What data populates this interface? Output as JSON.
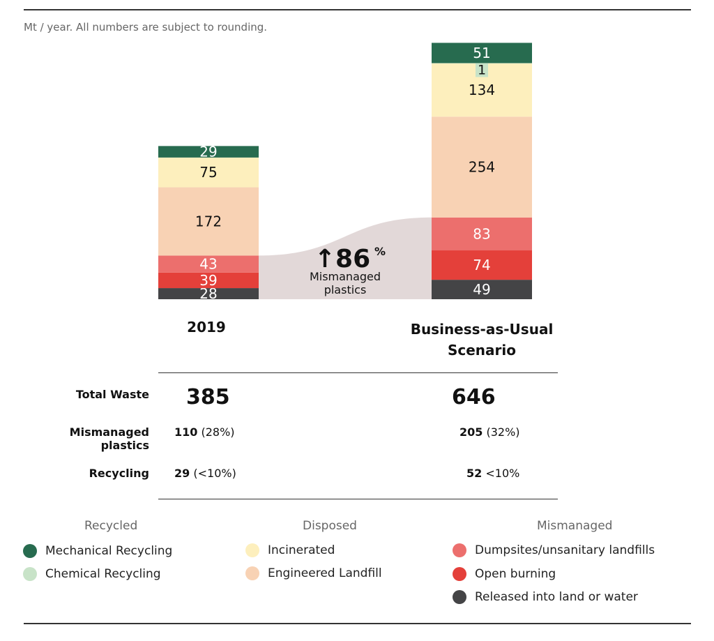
{
  "note": "Mt / year. All numbers are subject to rounding.",
  "colors": {
    "mechanical": "#276b4f",
    "chemical": "#c8e3c8",
    "incinerated": "#fdefbd",
    "landfill": "#f8d2b4",
    "dumpsites": "#ec6f6d",
    "burning": "#e4403a",
    "released": "#444446",
    "flow": "#e2d8d8"
  },
  "chart_data": {
    "type": "bar",
    "stacked": true,
    "unit": "Mt / year",
    "categories": [
      "2019",
      "Business-as-Usual Scenario"
    ],
    "series": [
      {
        "name": "Released into land or water",
        "key": "released",
        "values": [
          28,
          49
        ],
        "label_color": "#fff"
      },
      {
        "name": "Open burning",
        "key": "burning",
        "values": [
          39,
          74
        ],
        "label_color": "#fff"
      },
      {
        "name": "Dumpsites/unsanitary landfills",
        "key": "dumpsites",
        "values": [
          43,
          83
        ],
        "label_color": "#fff"
      },
      {
        "name": "Engineered Landfill",
        "key": "landfill",
        "values": [
          172,
          254
        ],
        "label_color": "#111"
      },
      {
        "name": "Incinerated",
        "key": "incinerated",
        "values": [
          75,
          134
        ],
        "label_color": "#111"
      },
      {
        "name": "Chemical Recycling",
        "key": "chemical",
        "values": [
          0,
          1
        ],
        "label_color": "#111"
      },
      {
        "name": "Mechanical Recycling",
        "key": "mechanical",
        "values": [
          29,
          51
        ],
        "label_color": "#fff"
      }
    ],
    "annotation": {
      "value": "86",
      "unit": "%",
      "arrow": "up",
      "label_line1": "Mismanaged",
      "label_line2": "plastics"
    }
  },
  "table": {
    "rows": [
      {
        "label": "Total Waste",
        "v2019": "385",
        "vbau": "646"
      },
      {
        "label1": "Mismanaged",
        "label2": "plastics",
        "v2019": "110",
        "p2019": "(28%)",
        "vbau": "205",
        "pbau": "(32%)"
      },
      {
        "label": "Recycling",
        "v2019": "29",
        "p2019": "(<10%)",
        "vbau": "52",
        "pbau": "<10%"
      }
    ]
  },
  "legend": {
    "groups": [
      {
        "title": "Recycled",
        "items": [
          "Mechanical Recycling",
          "Chemical Recycling"
        ]
      },
      {
        "title": "Disposed",
        "items": [
          "Incinerated",
          "Engineered Landfill"
        ]
      },
      {
        "title": "Mismanaged",
        "items": [
          "Dumpsites/unsanitary landfills",
          "Open burning",
          "Released into land or water"
        ]
      }
    ]
  }
}
